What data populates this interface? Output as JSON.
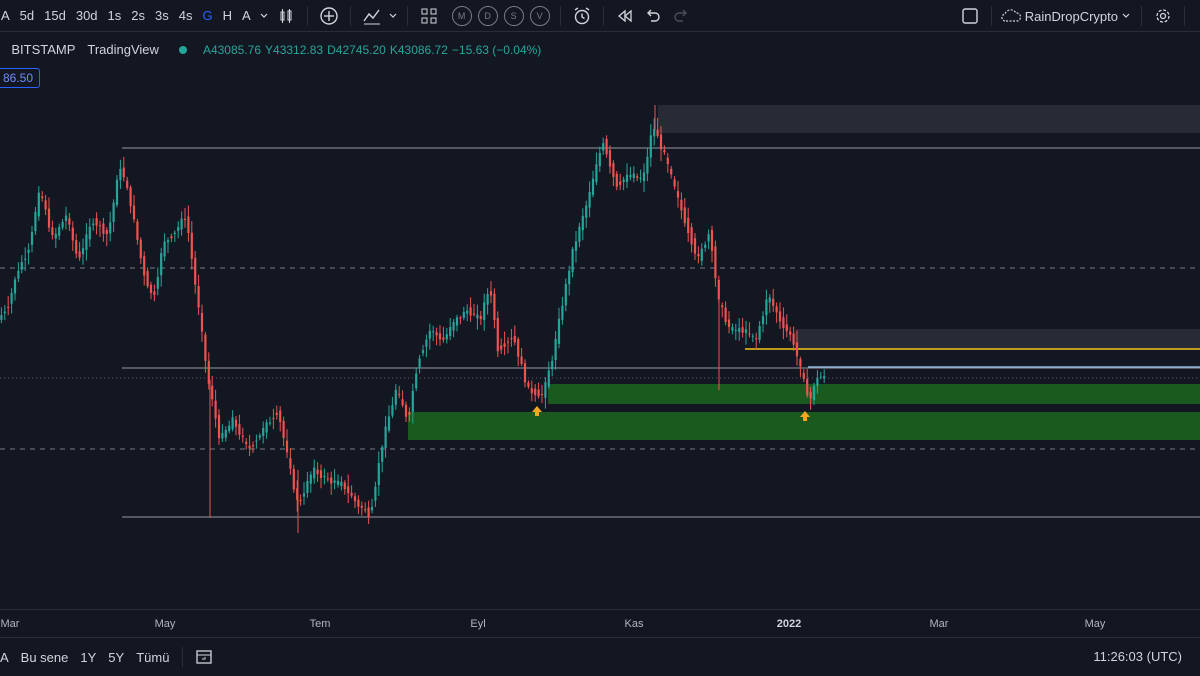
{
  "toolbar": {
    "timeframes": [
      "A",
      "5d",
      "15d",
      "30d",
      "1s",
      "2s",
      "3s",
      "4s",
      "G",
      "H",
      "A"
    ],
    "active_timeframe_index": 8,
    "indicator_circles": [
      "M",
      "D",
      "S",
      "V"
    ],
    "user_name": "RainDropCrypto"
  },
  "legend": {
    "symbol": "BITSTAMP",
    "source": "TradingView",
    "open_label": "A",
    "open": "43085.76",
    "high_label": "Y",
    "high": "43312.83",
    "low_label": "D",
    "low": "42745.20",
    "close_label": "K",
    "close": "43086.72",
    "change": "−15.63 (−0.04%)"
  },
  "price_badge": "86.50",
  "xaxis": {
    "labels": [
      {
        "text": "Mar",
        "bold": false
      },
      {
        "text": "May",
        "bold": false
      },
      {
        "text": "Tem",
        "bold": false
      },
      {
        "text": "Eyl",
        "bold": false
      },
      {
        "text": "Kas",
        "bold": false
      },
      {
        "text": "2022",
        "bold": true
      },
      {
        "text": "Mar",
        "bold": false
      },
      {
        "text": "May",
        "bold": false
      }
    ]
  },
  "bottom": {
    "ranges": [
      "A",
      "Bu sene",
      "1Y",
      "5Y",
      "Tümü"
    ],
    "clock": "11:26:03 (UTC)"
  },
  "colors": {
    "up": "#26a69a",
    "down": "#ef5350",
    "zone_green": "#1b5e20",
    "zone_gray": "#2a2e39",
    "yellow_line": "#f5c518",
    "blue_line": "#90b4d8",
    "arrow": "#f5a623"
  }
}
